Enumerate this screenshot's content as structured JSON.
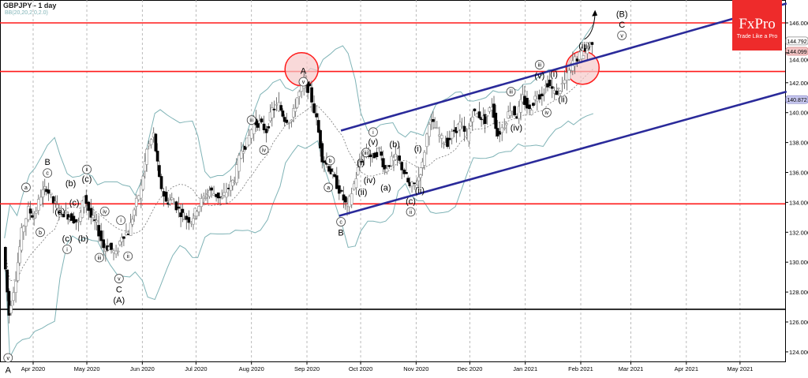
{
  "header": {
    "title": "GBPJPY - 1 day",
    "indicator": "BB(20,20,2.0,2.0)"
  },
  "logo": {
    "brand": "FxPro",
    "tagline": "Trade Like a Pro"
  },
  "colors": {
    "resistance": "#ff1a1a",
    "channel": "#2a2a9a",
    "support_black": "#000000",
    "bands": "#7fb3b6",
    "bull_candle": "#bdbdbd",
    "bear_candle": "#000000",
    "circle_fill": "#f7c9c9"
  },
  "chart_data": {
    "type": "candlestick",
    "title": "GBPJPY - 1 day",
    "ylim": [
      123,
      147.2
    ],
    "y_ticks": [
      "124.000",
      "126.000",
      "128.000",
      "130.000",
      "132.000",
      "134.000",
      "136.000",
      "138.000",
      "140.000",
      "142.000",
      "144.000",
      "146.000"
    ],
    "x_ticks": [
      {
        "label": "Apr 2020",
        "date": "2020-04-01"
      },
      {
        "label": "May 2020",
        "date": "2020-05-01"
      },
      {
        "label": "Jun 2020",
        "date": "2020-06-01"
      },
      {
        "label": "Jul 2020",
        "date": "2020-07-01"
      },
      {
        "label": "Aug 2020",
        "date": "2020-08-01"
      },
      {
        "label": "Sep 2020",
        "date": "2020-09-01"
      },
      {
        "label": "Oct 2020",
        "date": "2020-10-01"
      },
      {
        "label": "Nov 2020",
        "date": "2020-11-01"
      },
      {
        "label": "Dec 2020",
        "date": "2020-12-01"
      },
      {
        "label": "Jan 2021",
        "date": "2021-01-01"
      },
      {
        "label": "Feb 2021",
        "date": "2021-02-01"
      },
      {
        "label": "Mar 2021",
        "date": "2021-03-01"
      },
      {
        "label": "Apr 2021",
        "date": "2021-04-01"
      },
      {
        "label": "May 2021",
        "date": "2021-05-01"
      }
    ],
    "price_labels": [
      {
        "value": "144.792",
        "bg": "#ffffff",
        "border": "#888888"
      },
      {
        "value": "144.099",
        "bg": "#f4c6c6",
        "border": "#d08080"
      },
      {
        "value": "140.872",
        "bg": "#c8c8f0",
        "border": "#8080c0"
      }
    ],
    "closes": [
      [
        "2020-03-16",
        131
      ],
      [
        "2020-03-19",
        126.5
      ],
      [
        "2020-03-23",
        129
      ],
      [
        "2020-03-26",
        132
      ],
      [
        "2020-03-30",
        133.5
      ],
      [
        "2020-04-02",
        133
      ],
      [
        "2020-04-06",
        134.5
      ],
      [
        "2020-04-09",
        135
      ],
      [
        "2020-04-13",
        134
      ],
      [
        "2020-04-16",
        133.5
      ],
      [
        "2020-04-20",
        133.2
      ],
      [
        "2020-04-23",
        133
      ],
      [
        "2020-04-27",
        132.6
      ],
      [
        "2020-04-30",
        134.5
      ],
      [
        "2020-05-04",
        133
      ],
      [
        "2020-05-07",
        132.5
      ],
      [
        "2020-05-11",
        131
      ],
      [
        "2020-05-14",
        131
      ],
      [
        "2020-05-18",
        130.5
      ],
      [
        "2020-05-21",
        131.8
      ],
      [
        "2020-05-25",
        132
      ],
      [
        "2020-05-28",
        133.5
      ],
      [
        "2020-06-01",
        135
      ],
      [
        "2020-06-04",
        137.5
      ],
      [
        "2020-06-08",
        138.5
      ],
      [
        "2020-06-11",
        135.5
      ],
      [
        "2020-06-15",
        134
      ],
      [
        "2020-06-18",
        134.2
      ],
      [
        "2020-06-22",
        133.5
      ],
      [
        "2020-06-25",
        133
      ],
      [
        "2020-06-29",
        132.8
      ],
      [
        "2020-07-02",
        133.6
      ],
      [
        "2020-07-06",
        134.3
      ],
      [
        "2020-07-09",
        134.8
      ],
      [
        "2020-07-13",
        134.5
      ],
      [
        "2020-07-16",
        134.2
      ],
      [
        "2020-07-20",
        135
      ],
      [
        "2020-07-23",
        135.6
      ],
      [
        "2020-07-27",
        137.5
      ],
      [
        "2020-07-30",
        138
      ],
      [
        "2020-08-03",
        139.3
      ],
      [
        "2020-08-06",
        139.3
      ],
      [
        "2020-08-10",
        138.8
      ],
      [
        "2020-08-13",
        140.2
      ],
      [
        "2020-08-17",
        140.5
      ],
      [
        "2020-08-20",
        139.6
      ],
      [
        "2020-08-24",
        139.5
      ],
      [
        "2020-08-27",
        141
      ],
      [
        "2020-08-31",
        141.9
      ],
      [
        "2020-09-03",
        141.5
      ],
      [
        "2020-09-07",
        139.5
      ],
      [
        "2020-09-10",
        137
      ],
      [
        "2020-09-14",
        136.3
      ],
      [
        "2020-09-17",
        135.5
      ],
      [
        "2020-09-21",
        134.5
      ],
      [
        "2020-09-24",
        133.6
      ],
      [
        "2020-09-28",
        135.2
      ],
      [
        "2020-10-01",
        136.7
      ],
      [
        "2020-10-05",
        137.3
      ],
      [
        "2020-10-08",
        137
      ],
      [
        "2020-10-12",
        137.5
      ],
      [
        "2020-10-15",
        136.2
      ],
      [
        "2020-10-19",
        136.8
      ],
      [
        "2020-10-22",
        137
      ],
      [
        "2020-10-26",
        136
      ],
      [
        "2020-10-29",
        135
      ],
      [
        "2020-11-02",
        135.3
      ],
      [
        "2020-11-05",
        136.5
      ],
      [
        "2020-11-09",
        139.5
      ],
      [
        "2020-11-12",
        139
      ],
      [
        "2020-11-16",
        138.2
      ],
      [
        "2020-11-19",
        138
      ],
      [
        "2020-11-23",
        138.8
      ],
      [
        "2020-11-26",
        139.2
      ],
      [
        "2020-11-30",
        138.3
      ],
      [
        "2020-12-03",
        140
      ],
      [
        "2020-12-07",
        139.8
      ],
      [
        "2020-12-10",
        139.5
      ],
      [
        "2020-12-14",
        140.5
      ],
      [
        "2020-12-17",
        138.5
      ],
      [
        "2020-12-21",
        139.2
      ],
      [
        "2020-12-24",
        140.3
      ],
      [
        "2020-12-28",
        139.8
      ],
      [
        "2020-12-31",
        141
      ],
      [
        "2021-01-04",
        140.1
      ],
      [
        "2021-01-07",
        141
      ],
      [
        "2021-01-11",
        141.3
      ],
      [
        "2021-01-14",
        142
      ],
      [
        "2021-01-18",
        141.3
      ],
      [
        "2021-01-21",
        141.6
      ],
      [
        "2021-01-25",
        142.4
      ],
      [
        "2021-01-28",
        143.4
      ],
      [
        "2021-02-01",
        143.8
      ],
      [
        "2021-02-04",
        144.1
      ],
      [
        "2021-02-08",
        144.8
      ]
    ],
    "horizontal_levels": [
      {
        "price": 146.0,
        "color": "#ff1a1a"
      },
      {
        "price": 142.75,
        "color": "#ff1a1a"
      },
      {
        "price": 133.9,
        "color": "#ff1a1a"
      },
      {
        "price": 126.85,
        "color": "#000000"
      }
    ],
    "channel_lines": [
      {
        "from": [
          "2020-09-20",
          138.8
        ],
        "to": [
          "2021-05-27",
          147.3
        ]
      },
      {
        "from": [
          "2020-09-19",
          133.1
        ],
        "to": [
          "2021-05-27",
          141.4
        ]
      }
    ],
    "highlight_circles": [
      {
        "date": "2020-08-29",
        "price": 142.9
      },
      {
        "date": "2021-02-02",
        "price": 143.0
      }
    ],
    "projection_arrow": {
      "from": [
        "2021-02-03",
        144.9
      ],
      "to": [
        "2021-02-09",
        146.6
      ]
    },
    "wave_labels": [
      {
        "text": "A",
        "date": "2020-03-18",
        "price": 122.8,
        "circled": false
      },
      {
        "text": "v",
        "date": "2020-03-18",
        "price": 123.6,
        "circled": true
      },
      {
        "text": "a",
        "date": "2020-03-28",
        "price": 135.0,
        "circled": true
      },
      {
        "text": "B",
        "date": "2020-04-09",
        "price": 136.7,
        "circled": false
      },
      {
        "text": "c",
        "date": "2020-04-09",
        "price": 136.0,
        "circled": true
      },
      {
        "text": "b",
        "date": "2020-04-05",
        "price": 132.0,
        "circled": true
      },
      {
        "text": "(b)",
        "date": "2020-04-22",
        "price": 135.3,
        "circled": false
      },
      {
        "text": "(a)",
        "date": "2020-04-16",
        "price": 133.4,
        "circled": false
      },
      {
        "text": "(c)",
        "date": "2020-04-24",
        "price": 134.0,
        "circled": false
      },
      {
        "text": "(c)",
        "date": "2020-04-20",
        "price": 131.6,
        "circled": false
      },
      {
        "text": "i",
        "date": "2020-04-20",
        "price": 130.95,
        "circled": true
      },
      {
        "text": "(b)",
        "date": "2020-04-29",
        "price": 131.6,
        "circled": false
      },
      {
        "text": "ii",
        "date": "2020-05-01",
        "price": 136.2,
        "circled": true
      },
      {
        "text": "(c)",
        "date": "2020-05-01",
        "price": 135.6,
        "circled": false
      },
      {
        "text": "iv",
        "date": "2020-05-11",
        "price": 133.4,
        "circled": true
      },
      {
        "text": "iii",
        "date": "2020-05-08",
        "price": 130.3,
        "circled": true
      },
      {
        "text": "i",
        "date": "2020-05-20",
        "price": 132.8,
        "circled": true
      },
      {
        "text": "ii",
        "date": "2020-05-24",
        "price": 130.4,
        "circled": true
      },
      {
        "text": "v",
        "date": "2020-05-19",
        "price": 128.9,
        "circled": true
      },
      {
        "text": "C",
        "date": "2020-05-19",
        "price": 128.2,
        "circled": false
      },
      {
        "text": "(A)",
        "date": "2020-05-19",
        "price": 127.6,
        "circled": false
      },
      {
        "text": "iii",
        "date": "2020-08-01",
        "price": 139.5,
        "circled": true
      },
      {
        "text": "iv",
        "date": "2020-08-08",
        "price": 137.5,
        "circled": true
      },
      {
        "text": "A",
        "date": "2020-08-30",
        "price": 142.8,
        "circled": false
      },
      {
        "text": "v",
        "date": "2020-08-30",
        "price": 142.1,
        "circled": true
      },
      {
        "text": "b",
        "date": "2020-09-14",
        "price": 136.8,
        "circled": true
      },
      {
        "text": "a",
        "date": "2020-09-13",
        "price": 135.0,
        "circled": true
      },
      {
        "text": "c",
        "date": "2020-09-20",
        "price": 132.7,
        "circled": true
      },
      {
        "text": "B",
        "date": "2020-09-20",
        "price": 132.0,
        "circled": false
      },
      {
        "text": "i",
        "date": "2020-10-08",
        "price": 138.7,
        "circled": true
      },
      {
        "text": "(v)",
        "date": "2020-10-08",
        "price": 138.1,
        "circled": false
      },
      {
        "text": "(iii)",
        "date": "2020-10-04",
        "price": 137.8,
        "circled": true
      },
      {
        "text": "(i)",
        "date": "2020-10-00",
        "price": 137.2,
        "circled": false
      },
      {
        "text": "(ii)",
        "date": "2020-10-02",
        "price": 134.7,
        "circled": false
      },
      {
        "text": "(iv)",
        "date": "2020-10-06",
        "price": 135.5,
        "circled": false
      },
      {
        "text": "(b)",
        "date": "2020-10-20",
        "price": 137.9,
        "circled": false
      },
      {
        "text": "(a)",
        "date": "2020-10-15",
        "price": 135.0,
        "circled": false
      },
      {
        "text": "(c)",
        "date": "2020-10-29",
        "price": 134.1,
        "circled": false
      },
      {
        "text": "ii",
        "date": "2020-10-29",
        "price": 133.5,
        "circled": true
      },
      {
        "text": "(i)",
        "date": "2020-11-02",
        "price": 137.6,
        "circled": false
      },
      {
        "text": "(ii)",
        "date": "2020-11-03",
        "price": 134.8,
        "circled": false
      },
      {
        "text": "iii",
        "date": "2020-12-24",
        "price": 141.4,
        "circled": true
      },
      {
        "text": "(iv)",
        "date": "2020-12-27",
        "price": 139.0,
        "circled": false
      },
      {
        "text": "iii",
        "date": "2021-01-09",
        "price": 143.2,
        "circled": true
      },
      {
        "text": "(v)",
        "date": "2021-01-09",
        "price": 142.5,
        "circled": false
      },
      {
        "text": "(i)",
        "date": "2021-01-17",
        "price": 142.6,
        "circled": false
      },
      {
        "text": "iv",
        "date": "2021-01-13",
        "price": 140.0,
        "circled": true
      },
      {
        "text": "(ii)",
        "date": "2021-01-22",
        "price": 140.9,
        "circled": false
      },
      {
        "text": "(iii)",
        "date": "2021-02-03",
        "price": 144.5,
        "circled": false
      },
      {
        "text": "(B)",
        "date": "2021-02-24",
        "price": 146.6,
        "circled": false
      },
      {
        "text": "C",
        "date": "2021-02-24",
        "price": 145.9,
        "circled": false
      },
      {
        "text": "v",
        "date": "2021-02-24",
        "price": 145.25,
        "circled": true
      }
    ]
  }
}
